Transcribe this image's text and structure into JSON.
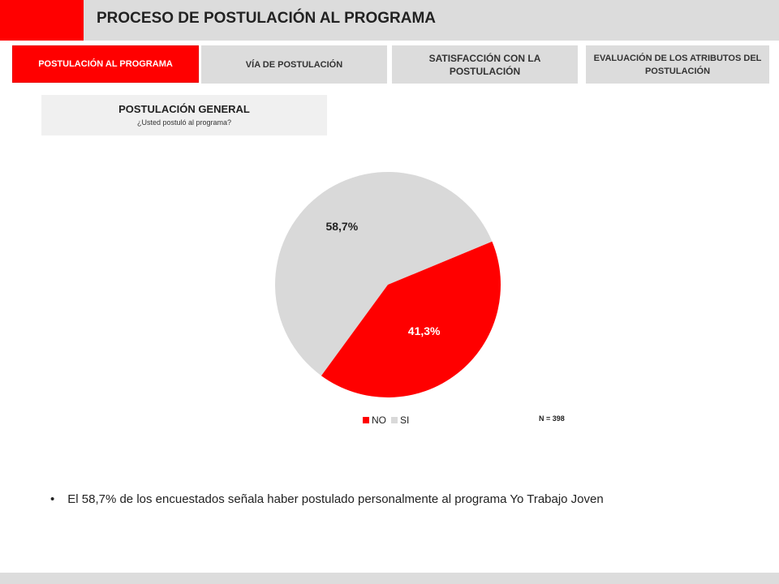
{
  "header": {
    "title": "PROCESO DE POSTULACIÓN AL PROGRAMA"
  },
  "tabs": [
    {
      "label": "POSTULACIÓN AL PROGRAMA",
      "active": true
    },
    {
      "label": "VÍA DE POSTULACIÓN",
      "active": false
    },
    {
      "label": "SATISFACCIÓN CON LA POSTULACIÓN",
      "active": false
    },
    {
      "label": "EVALUACIÓN DE LOS ATRIBUTOS DEL POSTULACIÓN",
      "active": false
    }
  ],
  "section": {
    "title": "POSTULACIÓN GENERAL",
    "question": "¿Usted postuló al programa?"
  },
  "chart_data": {
    "type": "pie",
    "categories": [
      "NO",
      "SI"
    ],
    "values": [
      41.3,
      58.7
    ],
    "data_labels": [
      "41,3%",
      "58,7%"
    ],
    "colors": [
      "#ff0000",
      "#d9d9d9"
    ],
    "legend_position": "bottom",
    "note": "N = 398"
  },
  "bullet": {
    "text": "El 58,7% de los encuestados señala haber postulado personalmente al programa Yo Trabajo Joven"
  },
  "colors": {
    "accent": "#ff0000",
    "header_bg": "#dcdcdc",
    "section_bg": "#f0f0f0"
  }
}
